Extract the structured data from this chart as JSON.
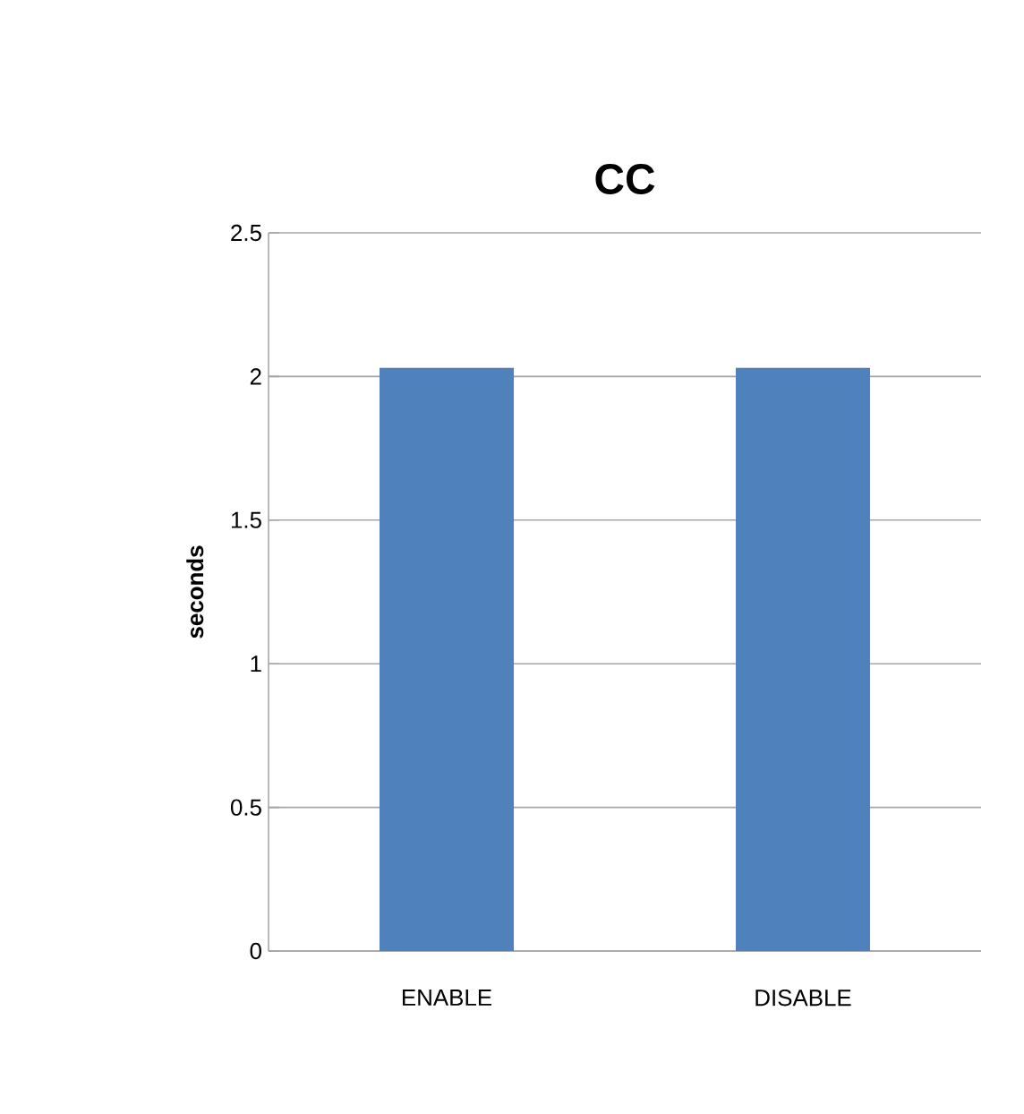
{
  "chart_data": {
    "type": "bar",
    "title": "CC",
    "ylabel": "seconds",
    "categories": [
      "ENABLE",
      "DISABLE"
    ],
    "values": [
      2.03,
      2.03
    ],
    "color": "#4f81bd",
    "ylim": [
      0,
      2.5
    ],
    "yticks": [
      0,
      0.5,
      1,
      1.5,
      2,
      2.5
    ],
    "grid": "y"
  }
}
